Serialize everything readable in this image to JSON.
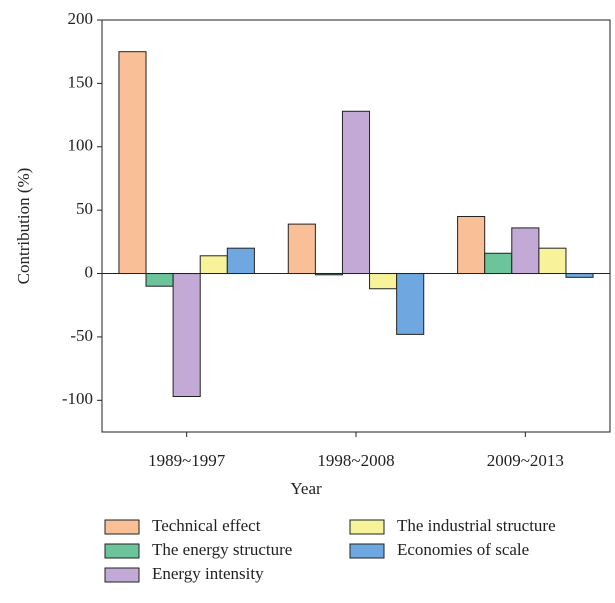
{
  "chart_data": {
    "type": "bar",
    "x_label": "Year",
    "y_label": "Contribution (%)",
    "categories": [
      "1989~1997",
      "1998~2008",
      "2009~2013"
    ],
    "series": [
      {
        "name": "Technical effect",
        "color": "#f9bf96",
        "values": [
          175,
          39,
          45
        ]
      },
      {
        "name": "The energy structure",
        "color": "#6cc49a",
        "values": [
          -10,
          -1,
          16
        ]
      },
      {
        "name": "Energy intensity",
        "color": "#c3aad6",
        "values": [
          -97,
          128,
          36
        ]
      },
      {
        "name": "The industrial structure",
        "color": "#f8f39a",
        "values": [
          14,
          -12,
          20
        ]
      },
      {
        "name": "Economies of scale",
        "color": "#6fa8e0",
        "values": [
          20,
          -48,
          -3
        ]
      }
    ],
    "ylim": [
      -125,
      200
    ],
    "yticks": [
      -100,
      -50,
      0,
      50,
      100,
      150,
      200
    ]
  }
}
